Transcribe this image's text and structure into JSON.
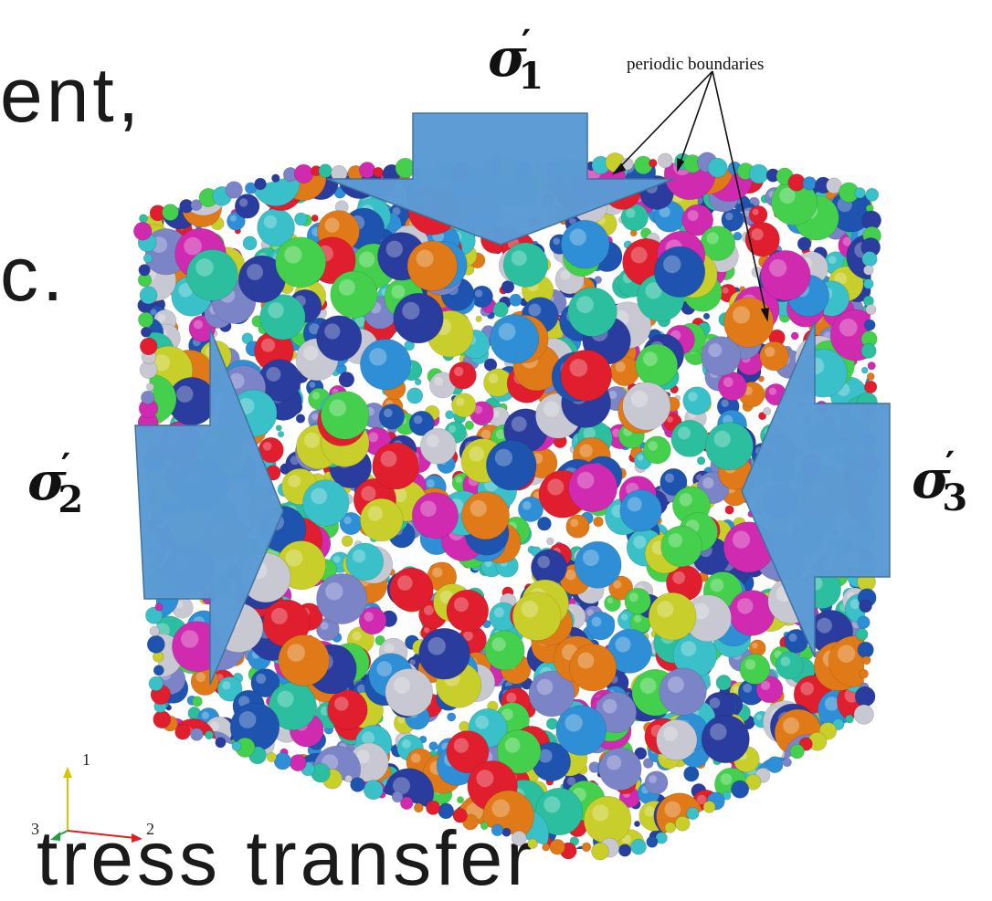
{
  "background_text": {
    "line1": "ent,",
    "line2": "c.",
    "line3": "tress transfer"
  },
  "stresses": {
    "sigma1": {
      "symbol": "σ",
      "subscript": "1",
      "prime": "′"
    },
    "sigma2": {
      "symbol": "σ",
      "subscript": "2",
      "prime": "′"
    },
    "sigma3": {
      "symbol": "σ",
      "subscript": "3",
      "prime": "′"
    }
  },
  "annotation": "periodic boundaries",
  "axes": {
    "label_1": "1",
    "label_2": "2",
    "label_3": "3"
  },
  "colors": {
    "arrow_fill": "#5b9bd5",
    "arrow_stroke": "#41719c",
    "particles": [
      "#2a3d9e",
      "#1e54b0",
      "#7c84c8",
      "#3ac0c8",
      "#2bbfa0",
      "#44d04c",
      "#2e8fd6",
      "#c8c8d2",
      "#c9cf2a",
      "#e07a18",
      "#e01e2e",
      "#d02ab0"
    ]
  }
}
